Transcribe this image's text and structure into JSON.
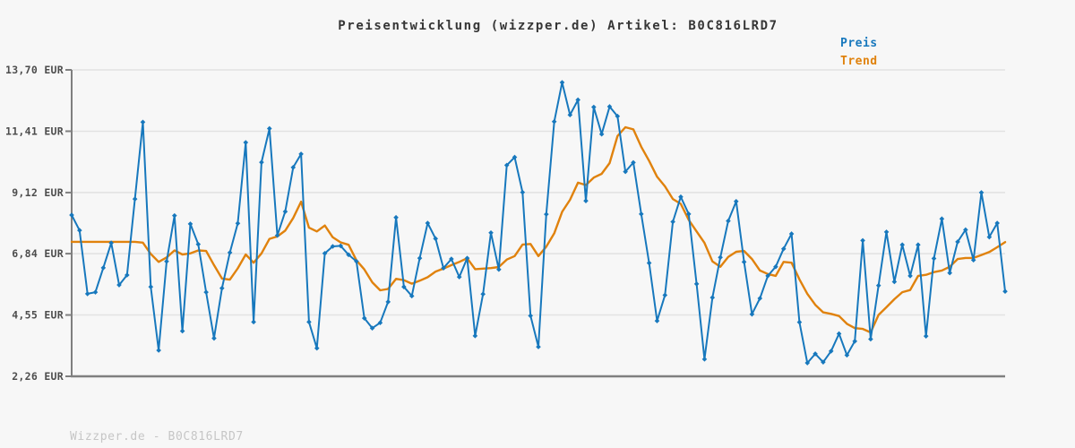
{
  "title": "Preisentwicklung (wizzper.de) Artikel: B0C816LRD7",
  "legend": {
    "price_label": "Preis",
    "trend_label": "Trend"
  },
  "footer": "Wizzper.de - B0C816LRD7",
  "colors": {
    "price": "#1778bd",
    "trend": "#e0820d",
    "grid": "#e2e2e2",
    "axis": "#7f7f7f",
    "tick_label": "#4d4d4d",
    "background": "#f7f7f7",
    "footer_text": "#c6c6c6"
  },
  "chart_data": {
    "type": "line",
    "title": "Preisentwicklung (wizzper.de) Artikel: B0C816LRD7",
    "xlabel": "",
    "ylabel": "EUR",
    "ylim": [
      2.26,
      13.7
    ],
    "grid": "horizontal-only",
    "legend_position": "top-right",
    "x_tick_labels": [],
    "y_ticks": [
      {
        "value": 13.7,
        "label": "13,70 EUR"
      },
      {
        "value": 11.41,
        "label": "11,41 EUR"
      },
      {
        "value": 9.12,
        "label": "9,12 EUR"
      },
      {
        "value": 6.84,
        "label": "6,84 EUR"
      },
      {
        "value": 4.55,
        "label": "4,55 EUR"
      },
      {
        "value": 2.26,
        "label": "2,26 EUR"
      }
    ],
    "series": [
      {
        "name": "Preis",
        "color": "#1778bd",
        "marker": "diamond",
        "values": [
          8.28,
          7.71,
          5.34,
          5.4,
          6.31,
          7.24,
          5.67,
          6.04,
          8.88,
          11.75,
          5.6,
          3.23,
          6.55,
          8.26,
          3.95,
          7.95,
          7.19,
          5.4,
          3.68,
          5.55,
          6.88,
          7.97,
          10.99,
          4.29,
          10.25,
          11.51,
          7.52,
          8.41,
          10.06,
          10.56,
          4.29,
          3.31,
          6.85,
          7.11,
          7.13,
          6.8,
          6.55,
          4.43,
          4.06,
          4.26,
          5.04,
          8.19,
          5.6,
          5.26,
          6.67,
          7.98,
          7.4,
          6.3,
          6.64,
          5.97,
          6.67,
          3.77,
          5.33,
          7.62,
          6.25,
          10.14,
          10.44,
          9.13,
          4.52,
          3.36,
          8.31,
          11.77,
          13.23,
          12.02,
          12.58,
          8.81,
          12.31,
          11.3,
          12.33,
          11.97,
          9.9,
          10.24,
          8.32,
          6.49,
          4.33,
          5.29,
          8.03,
          8.96,
          8.32,
          5.71,
          2.9,
          5.2,
          6.7,
          8.06,
          8.79,
          6.53,
          4.58,
          5.17,
          6.01,
          6.35,
          7.02,
          7.58,
          4.28,
          2.76,
          3.1,
          2.79,
          3.2,
          3.85,
          3.05,
          3.57,
          7.33,
          3.65,
          5.65,
          7.65,
          5.79,
          7.17,
          6.01,
          7.17,
          3.76,
          6.66,
          8.14,
          6.12,
          7.28,
          7.73,
          6.6,
          9.12,
          7.46,
          7.98,
          5.43
        ]
      },
      {
        "name": "Trend",
        "color": "#e0820d",
        "marker": "none",
        "values": [
          7.28,
          7.28,
          7.28,
          7.28,
          7.28,
          7.28,
          7.28,
          7.28,
          7.28,
          7.25,
          6.83,
          6.53,
          6.7,
          6.96,
          6.81,
          6.85,
          6.96,
          6.94,
          6.41,
          5.91,
          5.87,
          6.29,
          6.81,
          6.5,
          6.85,
          7.39,
          7.48,
          7.7,
          8.17,
          8.78,
          7.81,
          7.67,
          7.89,
          7.45,
          7.26,
          7.17,
          6.59,
          6.25,
          5.77,
          5.47,
          5.52,
          5.9,
          5.85,
          5.72,
          5.83,
          5.96,
          6.17,
          6.28,
          6.41,
          6.53,
          6.67,
          6.26,
          6.28,
          6.3,
          6.34,
          6.62,
          6.75,
          7.18,
          7.2,
          6.75,
          7.1,
          7.6,
          8.4,
          8.85,
          9.49,
          9.4,
          9.68,
          9.82,
          10.22,
          11.23,
          11.56,
          11.48,
          10.83,
          10.3,
          9.71,
          9.35,
          8.88,
          8.7,
          8.1,
          7.67,
          7.24,
          6.55,
          6.35,
          6.72,
          6.91,
          6.94,
          6.64,
          6.21,
          6.08,
          6.01,
          6.53,
          6.5,
          5.88,
          5.34,
          4.93,
          4.65,
          4.59,
          4.51,
          4.22,
          4.06,
          4.03,
          3.9,
          4.55,
          4.84,
          5.14,
          5.4,
          5.48,
          6.01,
          6.05,
          6.15,
          6.21,
          6.35,
          6.64,
          6.68,
          6.68,
          6.79,
          6.9,
          7.08,
          7.27
        ]
      }
    ]
  }
}
